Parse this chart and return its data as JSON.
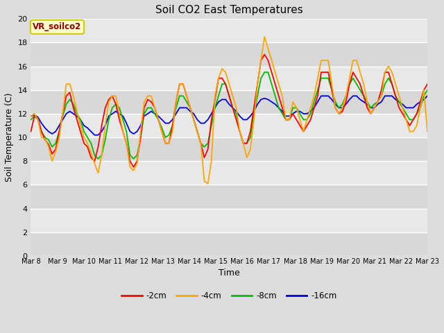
{
  "title": "Soil CO2 East Temperatures",
  "xlabel": "Time",
  "ylabel": "Soil Temperature (C)",
  "ylim": [
    0,
    20
  ],
  "yticks": [
    0,
    2,
    4,
    6,
    8,
    10,
    12,
    14,
    16,
    18,
    20
  ],
  "x_labels": [
    "Mar 8",
    "Mar 9",
    "Mar 10",
    "Mar 11",
    "Mar 12",
    "Mar 13",
    "Mar 14",
    "Mar 15",
    "Mar 16",
    "Mar 17",
    "Mar 18",
    "Mar 19",
    "Mar 20",
    "Mar 21",
    "Mar 22",
    "Mar 23"
  ],
  "colors": {
    "-2cm": "#ff0000",
    "-4cm": "#ffa500",
    "-8cm": "#00bb00",
    "-16cm": "#0000dd"
  },
  "legend_label": "VR_soilco2",
  "fig_bg": "#dcdcdc",
  "plot_bg_top": "#d8d8d8",
  "plot_bg_bot": "#f0f0f0",
  "grid_color": "#ffffff",
  "series": {
    "-2cm": [
      10.5,
      11.8,
      11.6,
      10.5,
      9.8,
      9.4,
      8.6,
      9.0,
      10.5,
      12.0,
      13.5,
      13.8,
      12.5,
      11.5,
      10.5,
      9.5,
      9.2,
      8.3,
      8.0,
      9.2,
      11.0,
      12.5,
      13.2,
      13.5,
      12.8,
      11.5,
      10.5,
      9.5,
      8.0,
      7.5,
      8.0,
      10.0,
      12.5,
      13.2,
      13.0,
      12.5,
      11.5,
      10.5,
      9.5,
      9.5,
      11.0,
      13.0,
      14.5,
      14.5,
      13.5,
      12.5,
      11.5,
      10.5,
      9.5,
      8.3,
      9.0,
      11.5,
      13.2,
      15.0,
      15.0,
      14.5,
      13.5,
      12.5,
      11.5,
      10.5,
      9.5,
      9.5,
      10.5,
      12.5,
      14.5,
      16.5,
      17.0,
      16.5,
      15.5,
      14.5,
      13.5,
      12.5,
      11.5,
      11.5,
      12.0,
      11.5,
      11.0,
      10.5,
      11.0,
      11.5,
      12.5,
      13.5,
      15.5,
      15.5,
      15.5,
      14.0,
      12.5,
      12.0,
      12.2,
      13.0,
      14.5,
      15.5,
      15.0,
      14.5,
      13.5,
      12.5,
      12.0,
      12.5,
      13.0,
      14.0,
      15.5,
      15.5,
      14.5,
      13.5,
      12.5,
      12.0,
      11.5,
      11.0,
      11.5,
      12.0,
      13.0,
      14.0,
      14.5
    ],
    "-4cm": [
      11.8,
      12.0,
      11.5,
      10.0,
      9.9,
      9.2,
      8.0,
      8.8,
      10.0,
      12.0,
      14.5,
      14.5,
      13.5,
      12.2,
      11.0,
      10.0,
      9.5,
      8.7,
      7.8,
      7.0,
      8.5,
      11.0,
      13.0,
      13.5,
      13.5,
      12.0,
      10.5,
      9.5,
      7.5,
      7.2,
      7.8,
      10.5,
      13.0,
      13.5,
      13.5,
      12.5,
      11.5,
      10.5,
      9.5,
      9.5,
      10.5,
      13.0,
      14.5,
      14.5,
      13.5,
      12.5,
      11.5,
      10.5,
      9.5,
      6.3,
      6.1,
      8.0,
      13.5,
      15.0,
      15.8,
      15.5,
      14.5,
      13.5,
      12.5,
      10.5,
      9.5,
      8.3,
      9.0,
      11.5,
      14.5,
      16.5,
      18.5,
      17.5,
      16.5,
      15.5,
      14.5,
      13.5,
      11.5,
      11.5,
      13.0,
      12.5,
      11.5,
      10.5,
      11.5,
      12.5,
      13.5,
      15.0,
      16.5,
      16.5,
      16.5,
      14.5,
      12.5,
      12.0,
      12.5,
      13.5,
      15.0,
      16.5,
      16.5,
      15.5,
      14.5,
      13.0,
      12.0,
      12.5,
      13.0,
      13.5,
      15.5,
      16.0,
      15.5,
      14.5,
      13.5,
      12.5,
      11.5,
      10.5,
      10.5,
      11.0,
      12.5,
      14.0,
      10.5
    ],
    "-8cm": [
      11.5,
      11.8,
      11.5,
      10.5,
      10.0,
      9.8,
      9.2,
      9.5,
      10.5,
      11.8,
      12.8,
      13.2,
      12.8,
      12.0,
      11.5,
      10.5,
      10.0,
      9.5,
      8.5,
      8.2,
      8.5,
      9.8,
      11.5,
      12.5,
      12.8,
      12.5,
      11.5,
      10.5,
      8.5,
      8.2,
      8.5,
      10.0,
      12.0,
      12.5,
      12.5,
      12.0,
      11.5,
      10.8,
      10.0,
      10.2,
      11.0,
      12.5,
      13.5,
      13.5,
      13.0,
      12.5,
      11.5,
      10.5,
      9.5,
      9.2,
      9.5,
      11.0,
      12.5,
      13.5,
      14.5,
      14.5,
      13.5,
      12.5,
      12.0,
      10.5,
      9.5,
      9.5,
      10.0,
      12.0,
      13.5,
      15.0,
      15.5,
      15.5,
      14.5,
      13.5,
      12.5,
      12.0,
      11.5,
      11.5,
      12.5,
      12.5,
      12.0,
      11.5,
      11.5,
      12.0,
      13.0,
      14.0,
      15.0,
      15.0,
      15.0,
      14.0,
      13.0,
      12.5,
      12.8,
      13.5,
      14.5,
      15.0,
      14.5,
      14.0,
      13.5,
      13.0,
      12.5,
      12.8,
      13.0,
      13.5,
      14.5,
      15.0,
      14.5,
      13.5,
      13.0,
      12.5,
      12.0,
      11.5,
      11.5,
      12.0,
      12.5,
      13.5,
      14.0
    ],
    "-16cm": [
      11.8,
      11.9,
      11.7,
      11.2,
      10.8,
      10.5,
      10.3,
      10.5,
      11.0,
      11.5,
      12.0,
      12.2,
      12.0,
      11.8,
      11.5,
      11.0,
      10.8,
      10.5,
      10.2,
      10.2,
      10.5,
      11.0,
      11.8,
      12.0,
      12.2,
      12.0,
      11.8,
      11.2,
      10.5,
      10.3,
      10.5,
      11.0,
      11.8,
      12.0,
      12.2,
      12.0,
      11.8,
      11.5,
      11.2,
      11.2,
      11.5,
      12.0,
      12.5,
      12.5,
      12.5,
      12.2,
      12.0,
      11.5,
      11.2,
      11.2,
      11.5,
      12.0,
      12.5,
      13.0,
      13.2,
      13.2,
      12.8,
      12.5,
      12.2,
      11.8,
      11.5,
      11.5,
      11.8,
      12.2,
      12.8,
      13.2,
      13.3,
      13.2,
      13.0,
      12.8,
      12.5,
      12.2,
      11.8,
      11.8,
      12.0,
      12.2,
      12.2,
      12.0,
      12.0,
      12.2,
      12.5,
      13.0,
      13.5,
      13.5,
      13.5,
      13.2,
      12.8,
      12.5,
      12.5,
      12.8,
      13.2,
      13.5,
      13.5,
      13.2,
      13.0,
      12.8,
      12.5,
      12.5,
      12.8,
      13.0,
      13.5,
      13.5,
      13.5,
      13.2,
      13.0,
      12.8,
      12.5,
      12.5,
      12.5,
      12.8,
      13.0,
      13.2,
      13.5
    ]
  }
}
